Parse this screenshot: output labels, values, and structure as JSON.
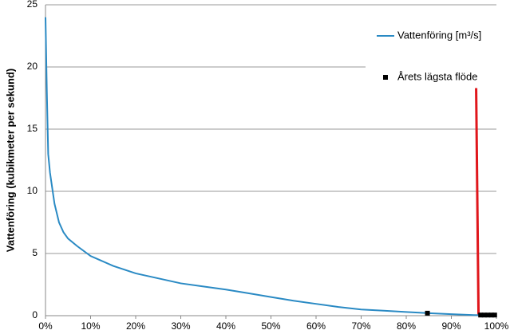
{
  "chart_data": {
    "type": "line",
    "y_label": "Vattenföring (kubikmeter per sekund)",
    "xlim": [
      0,
      100
    ],
    "ylim": [
      0,
      25
    ],
    "xticks": [
      {
        "value": 0,
        "label": "0%"
      },
      {
        "value": 10,
        "label": "10%"
      },
      {
        "value": 20,
        "label": "20%"
      },
      {
        "value": 30,
        "label": "30%"
      },
      {
        "value": 40,
        "label": "40%"
      },
      {
        "value": 50,
        "label": "50%"
      },
      {
        "value": 60,
        "label": "60%"
      },
      {
        "value": 70,
        "label": "70%"
      },
      {
        "value": 80,
        "label": "80%"
      },
      {
        "value": 90,
        "label": "90%"
      },
      {
        "value": 100,
        "label": "100%"
      }
    ],
    "yticks": [
      0,
      5,
      10,
      15,
      20,
      25
    ],
    "grid": true,
    "series": [
      {
        "name": "Vattenföring [m³/s]",
        "color": "#2a8ac4",
        "kind": "line",
        "x": [
          0,
          0.3,
          0.6,
          1,
          2,
          3,
          4,
          5,
          7,
          10,
          15,
          20,
          25,
          30,
          35,
          40,
          45,
          50,
          55,
          60,
          65,
          70,
          75,
          80,
          85,
          90,
          95,
          100
        ],
        "values": [
          24,
          18,
          13,
          11.5,
          9,
          7.5,
          6.7,
          6.2,
          5.6,
          4.8,
          4.0,
          3.4,
          3.0,
          2.6,
          2.35,
          2.1,
          1.8,
          1.5,
          1.2,
          0.95,
          0.7,
          0.5,
          0.4,
          0.3,
          0.2,
          0.12,
          0.05,
          0.02
        ]
      },
      {
        "name": "Årets lägsta flöde",
        "color": "#000000",
        "kind": "scatter",
        "x": [
          84.7,
          96.5,
          97.3,
          98.1,
          98.9,
          99.6
        ],
        "values": [
          0.2,
          0.05,
          0.05,
          0.05,
          0.05,
          0.05
        ]
      }
    ],
    "vline": {
      "x": 95.5,
      "y": [
        0,
        18.3
      ],
      "color": "#e0161b"
    }
  }
}
